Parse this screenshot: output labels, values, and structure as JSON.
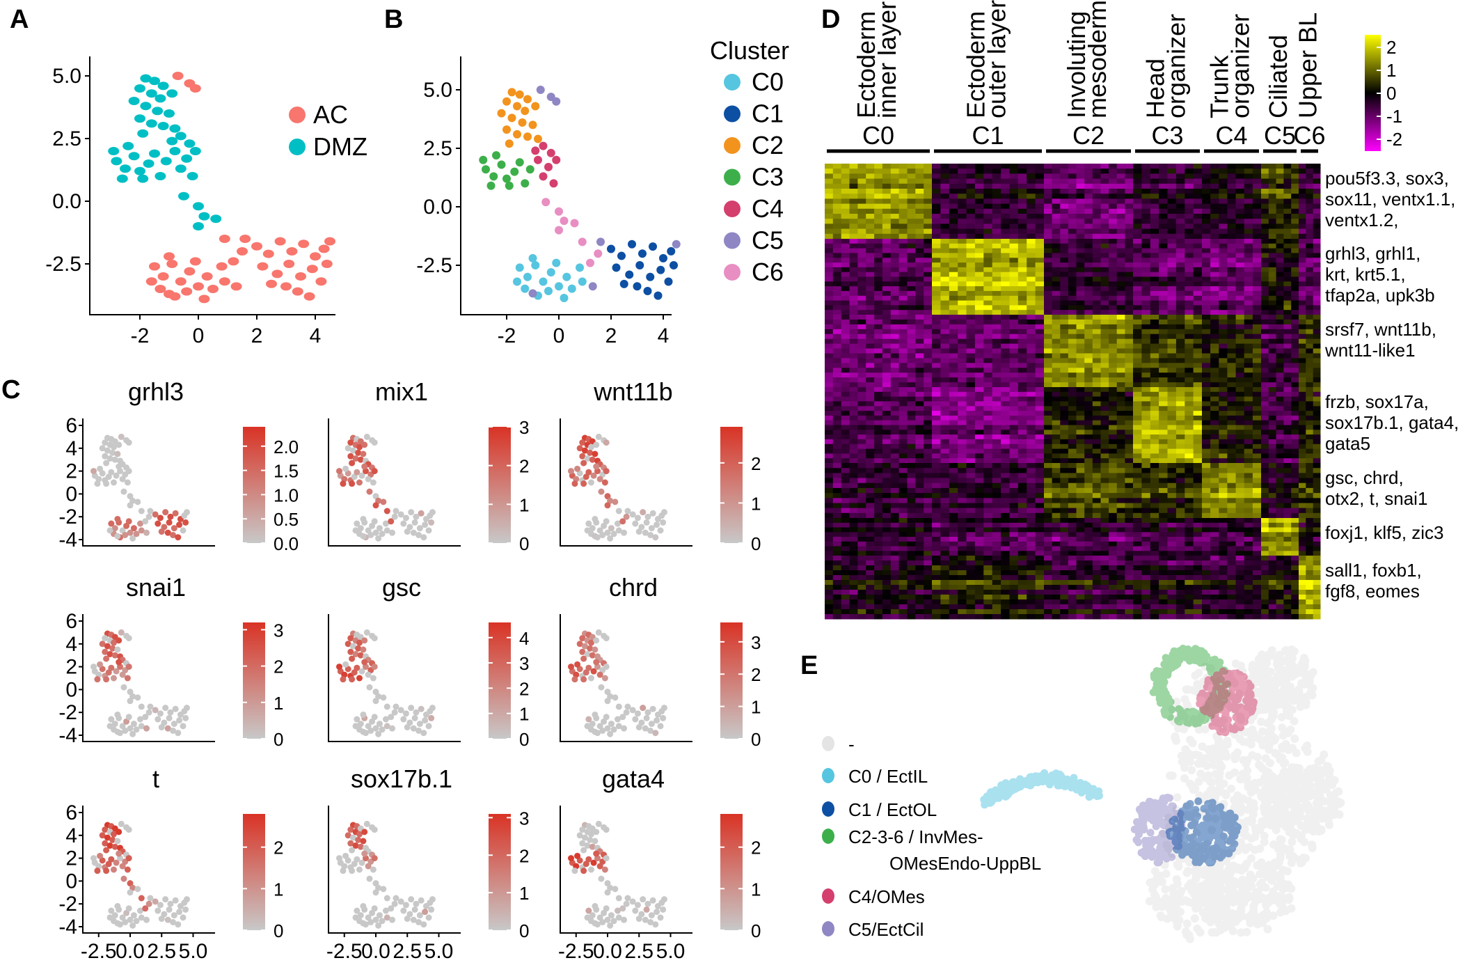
{
  "panel_labels": {
    "a": "A",
    "b": "B",
    "c": "C",
    "d": "D",
    "e": "E"
  },
  "chart_data": [
    {
      "panel": "A",
      "type": "scatter",
      "xlim": [
        -3.3,
        4.7
      ],
      "ylim": [
        -4.2,
        5.3
      ],
      "xticks": [
        "-2",
        "0",
        "2",
        "4"
      ],
      "xtick_values": [
        -2,
        0,
        2,
        4
      ],
      "yticks": [
        "5.0",
        "2.5",
        "0.0",
        "-2.5"
      ],
      "ytick_values": [
        5,
        2.5,
        0,
        -2.5
      ],
      "legend": [
        {
          "name": "AC",
          "color": "#F8766D"
        },
        {
          "name": "DMZ",
          "color": "#00BFC4"
        }
      ],
      "legend_position": "right"
    },
    {
      "panel": "B",
      "type": "scatter",
      "xlim": [
        -3.3,
        4.7
      ],
      "ylim": [
        -4.2,
        5.3
      ],
      "xticks": [
        "-2",
        "0",
        "2",
        "4"
      ],
      "xtick_values": [
        -2,
        0,
        2,
        4
      ],
      "yticks": [
        "5.0",
        "2.5",
        "0.0",
        "-2.5"
      ],
      "ytick_values": [
        5,
        2.5,
        0,
        -2.5
      ],
      "legend_title": "Cluster",
      "legend": [
        {
          "name": "C0",
          "color": "#56C5E0"
        },
        {
          "name": "C1",
          "color": "#0D4FA3"
        },
        {
          "name": "C2",
          "color": "#F2931E"
        },
        {
          "name": "C3",
          "color": "#3DAF4A"
        },
        {
          "name": "C4",
          "color": "#D43F6E"
        },
        {
          "name": "C5",
          "color": "#8E87C4"
        },
        {
          "name": "C6",
          "color": "#E88EC2"
        }
      ],
      "legend_position": "right"
    },
    {
      "panel": "C",
      "type": "scatter",
      "xticks": [
        "-2.5",
        "0.0",
        "2.5",
        "5.0"
      ],
      "xtick_values": [
        -2.5,
        0,
        2.5,
        5
      ],
      "yticks": [
        "6",
        "4",
        "2",
        "0",
        "-2",
        "-4"
      ],
      "ytick_values": [
        6,
        4,
        2,
        0,
        -2,
        -4
      ],
      "low_color": "#C8C8C8",
      "high_color": "#D93325",
      "genes": [
        {
          "name": "grhl3",
          "max": 2.4,
          "ticks": [
            "0.0",
            "0.5",
            "1.0",
            "1.5",
            "2.0"
          ],
          "tick_values": [
            0,
            0.5,
            1,
            1.5,
            2
          ],
          "expressed_clusters": [
            "C1",
            "C0"
          ]
        },
        {
          "name": "mix1",
          "max": 3.0,
          "ticks": [
            "0",
            "1",
            "2",
            "3"
          ],
          "tick_values": [
            0,
            1,
            2,
            3
          ],
          "expressed_clusters": [
            "C2",
            "C3",
            "C4",
            "C6"
          ]
        },
        {
          "name": "wnt11b",
          "max": 2.9,
          "ticks": [
            "0",
            "1",
            "2"
          ],
          "tick_values": [
            0,
            1,
            2
          ],
          "expressed_clusters": [
            "C2",
            "C3",
            "C4",
            "C6"
          ]
        },
        {
          "name": "snai1",
          "max": 3.2,
          "ticks": [
            "0",
            "1",
            "2",
            "3"
          ],
          "tick_values": [
            0,
            1,
            2,
            3
          ],
          "expressed_clusters": [
            "C2",
            "C3",
            "C4"
          ]
        },
        {
          "name": "gsc",
          "max": 4.6,
          "ticks": [
            "0",
            "1",
            "2",
            "3",
            "4"
          ],
          "tick_values": [
            0,
            1,
            2,
            3,
            4
          ],
          "expressed_clusters": [
            "C3",
            "C4",
            "C2"
          ]
        },
        {
          "name": "chrd",
          "max": 3.6,
          "ticks": [
            "0",
            "1",
            "2",
            "3"
          ],
          "tick_values": [
            0,
            1,
            2,
            3
          ],
          "expressed_clusters": [
            "C3",
            "C4",
            "C2"
          ]
        },
        {
          "name": "t",
          "max": 2.8,
          "ticks": [
            "0",
            "1",
            "2"
          ],
          "tick_values": [
            0,
            1,
            2
          ],
          "expressed_clusters": [
            "C2",
            "C3",
            "C4",
            "C6"
          ]
        },
        {
          "name": "sox17b.1",
          "max": 3.1,
          "ticks": [
            "0",
            "1",
            "2",
            "3"
          ],
          "tick_values": [
            0,
            1,
            2,
            3
          ],
          "expressed_clusters": [
            "C2",
            "C4"
          ]
        },
        {
          "name": "gata4",
          "max": 2.8,
          "ticks": [
            "0",
            "1",
            "2"
          ],
          "tick_values": [
            0,
            1,
            2
          ],
          "expressed_clusters": [
            "C3",
            "C4"
          ]
        }
      ]
    },
    {
      "panel": "D",
      "type": "heatmap",
      "clusters": [
        {
          "id": "C0",
          "label": [
            "Ectoderm",
            "inner layer"
          ]
        },
        {
          "id": "C1",
          "label": [
            "Ectoderm",
            "outer layer"
          ]
        },
        {
          "id": "C2",
          "label": [
            "Involuting",
            "mesoderm"
          ]
        },
        {
          "id": "C3",
          "label": [
            "Head",
            "organizer"
          ]
        },
        {
          "id": "C4",
          "label": [
            "Trunk",
            "organizer"
          ]
        },
        {
          "id": "C5",
          "label": [
            "Ciliated"
          ]
        },
        {
          "id": "C6",
          "label": [
            "Upper BL"
          ]
        }
      ],
      "gene_blocks": [
        {
          "genes": [
            "pou5f3.3, sox3,",
            "sox11, ventx1.1,",
            "ventx1.2,"
          ],
          "mean_z": [
            1.2,
            -0.5,
            -1.0,
            -0.5,
            -0.3,
            0.3,
            -0.5
          ]
        },
        {
          "genes": [
            "grhl3, grhl1,",
            "krt, krt5.1,",
            "tfap2a, upk3b"
          ],
          "mean_z": [
            -0.8,
            1.5,
            -0.5,
            -0.8,
            -1.0,
            0.0,
            -0.8
          ]
        },
        {
          "genes": [
            "srsf7, wnt11b,",
            "wnt11-like1"
          ],
          "mean_z": [
            -1.0,
            -0.8,
            1.2,
            0.5,
            0.2,
            -0.5,
            0.3
          ]
        },
        {
          "genes": [
            "frzb, sox17a,",
            "sox17b.1, gata4,",
            "gata5"
          ],
          "mean_z": [
            -0.6,
            -1.0,
            0.3,
            1.5,
            0.3,
            -0.5,
            0.3
          ]
        },
        {
          "genes": [
            "gsc, chrd,",
            "otx2, t, snai1"
          ],
          "mean_z": [
            -0.5,
            -0.5,
            0.5,
            0.3,
            1.0,
            -0.2,
            0.3
          ]
        },
        {
          "genes": [
            "foxj1, klf5, zic3"
          ],
          "mean_z": [
            -0.3,
            -0.5,
            -0.5,
            -0.5,
            -0.5,
            1.3,
            0.0
          ]
        },
        {
          "genes": [
            "sall1, foxb1,",
            "fgf8, eomes"
          ],
          "mean_z": [
            -0.2,
            0.2,
            -0.3,
            -0.2,
            -0.3,
            0.0,
            1.5
          ]
        }
      ],
      "colorbar_ticks": [
        "2",
        "1",
        "0",
        "-1",
        "-2"
      ],
      "colorbar_tick_values": [
        2,
        1,
        0,
        -1,
        -2
      ],
      "colors": {
        "high": "#FFFF00",
        "mid": "#000000",
        "low": "#FF00FF"
      }
    },
    {
      "panel": "E",
      "type": "scatter",
      "legend": [
        {
          "name": "-",
          "color": "#E4E4E4"
        },
        {
          "name": "C0 / EctIL",
          "color": "#56C5E0"
        },
        {
          "name": "C1 / EctOL",
          "color": "#0D4FA3"
        },
        {
          "name": "C2-3-6 / InvMes-",
          "name_line2": "OMesEndo-UppBL",
          "color": "#3DAF4A"
        },
        {
          "name": "C4/OMes",
          "color": "#D43F6E"
        },
        {
          "name": "C5/EctCil",
          "color": "#8E87C4"
        }
      ],
      "legend_position": "left"
    }
  ],
  "points": [
    [
      -1.8,
      4.9,
      "DMZ",
      "C2"
    ],
    [
      -1.5,
      4.8,
      "DMZ",
      "C2"
    ],
    [
      -1.2,
      4.6,
      "DMZ",
      "C2"
    ],
    [
      -2.0,
      4.5,
      "DMZ",
      "C2"
    ],
    [
      -1.6,
      4.3,
      "DMZ",
      "C2"
    ],
    [
      -1.3,
      4.1,
      "DMZ",
      "C2"
    ],
    [
      -0.9,
      4.3,
      "DMZ",
      "C2"
    ],
    [
      -2.2,
      4.0,
      "DMZ",
      "C2"
    ],
    [
      -1.8,
      3.8,
      "DMZ",
      "C2"
    ],
    [
      -1.4,
      3.6,
      "DMZ",
      "C2"
    ],
    [
      -1.0,
      3.5,
      "DMZ",
      "C2"
    ],
    [
      -2.0,
      3.3,
      "DMZ",
      "C2"
    ],
    [
      -1.6,
      3.1,
      "DMZ",
      "C2"
    ],
    [
      -1.2,
      3.0,
      "DMZ",
      "C2"
    ],
    [
      -0.8,
      2.9,
      "DMZ",
      "C2"
    ],
    [
      -1.9,
      2.7,
      "DMZ",
      "C2"
    ],
    [
      -2.8,
      1.6,
      "DMZ",
      "C3"
    ],
    [
      -2.5,
      1.3,
      "DMZ",
      "C3"
    ],
    [
      -2.2,
      1.8,
      "DMZ",
      "C3"
    ],
    [
      -2.0,
      1.2,
      "DMZ",
      "C3"
    ],
    [
      -1.7,
      1.5,
      "DMZ",
      "C3"
    ],
    [
      -2.4,
      2.2,
      "DMZ",
      "C3"
    ],
    [
      -1.5,
      1.9,
      "DMZ",
      "C3"
    ],
    [
      -2.9,
      2.0,
      "DMZ",
      "C3"
    ],
    [
      -1.9,
      0.9,
      "DMZ",
      "C3"
    ],
    [
      -1.3,
      1.0,
      "DMZ",
      "C3"
    ],
    [
      -2.6,
      0.9,
      "DMZ",
      "C3"
    ],
    [
      -1.1,
      1.6,
      "DMZ",
      "C3"
    ],
    [
      -0.6,
      2.6,
      "DMZ",
      "C4"
    ],
    [
      -0.3,
      2.3,
      "DMZ",
      "C4"
    ],
    [
      -0.8,
      2.0,
      "DMZ",
      "C4"
    ],
    [
      -0.4,
      1.7,
      "DMZ",
      "C4"
    ],
    [
      -0.1,
      2.0,
      "DMZ",
      "C4"
    ],
    [
      -0.6,
      1.3,
      "DMZ",
      "C4"
    ],
    [
      -0.2,
      1.0,
      "DMZ",
      "C4"
    ],
    [
      -0.9,
      2.4,
      "DMZ",
      "C4"
    ],
    [
      -0.7,
      5.0,
      "AC",
      "C5"
    ],
    [
      -0.3,
      4.7,
      "AC",
      "C5"
    ],
    [
      -0.1,
      4.5,
      "AC",
      "C5"
    ],
    [
      -0.5,
      0.2,
      "DMZ",
      "C6"
    ],
    [
      0.0,
      -0.2,
      "DMZ",
      "C6"
    ],
    [
      0.2,
      -0.6,
      "DMZ",
      "C6"
    ],
    [
      0.0,
      -1.0,
      "DMZ",
      "C6"
    ],
    [
      0.6,
      -0.7,
      "DMZ",
      "C6"
    ],
    [
      0.9,
      -1.5,
      "AC",
      "C6"
    ],
    [
      -1.5,
      -2.6,
      "AC",
      "C0"
    ],
    [
      -1.2,
      -3.0,
      "AC",
      "C0"
    ],
    [
      -0.9,
      -2.5,
      "AC",
      "C0"
    ],
    [
      -0.6,
      -3.2,
      "AC",
      "C0"
    ],
    [
      -0.3,
      -2.8,
      "AC",
      "C0"
    ],
    [
      0.0,
      -3.4,
      "AC",
      "C0"
    ],
    [
      0.3,
      -3.0,
      "AC",
      "C0"
    ],
    [
      -1.3,
      -3.5,
      "AC",
      "C0"
    ],
    [
      -0.8,
      -3.8,
      "AC",
      "C0"
    ],
    [
      -0.4,
      -3.6,
      "AC",
      "C0"
    ],
    [
      0.2,
      -3.9,
      "AC",
      "C0"
    ],
    [
      0.5,
      -3.5,
      "AC",
      "C0"
    ],
    [
      -1.0,
      -2.2,
      "AC",
      "C0"
    ],
    [
      0.8,
      -2.6,
      "AC",
      "C0"
    ],
    [
      -0.1,
      -2.4,
      "AC",
      "C0"
    ],
    [
      0.9,
      -3.2,
      "AC",
      "C0"
    ],
    [
      -1.6,
      -3.2,
      "AC",
      "C0"
    ],
    [
      2.0,
      -1.8,
      "AC",
      "C1"
    ],
    [
      2.4,
      -2.1,
      "AC",
      "C1"
    ],
    [
      2.8,
      -1.6,
      "AC",
      "C1"
    ],
    [
      3.2,
      -2.0,
      "AC",
      "C1"
    ],
    [
      3.6,
      -1.7,
      "AC",
      "C1"
    ],
    [
      4.0,
      -2.2,
      "AC",
      "C1"
    ],
    [
      4.3,
      -1.9,
      "AC",
      "C1"
    ],
    [
      2.2,
      -2.6,
      "AC",
      "C1"
    ],
    [
      2.7,
      -2.9,
      "AC",
      "C1"
    ],
    [
      3.1,
      -2.5,
      "AC",
      "C1"
    ],
    [
      3.5,
      -3.0,
      "AC",
      "C1"
    ],
    [
      3.9,
      -2.7,
      "AC",
      "C1"
    ],
    [
      4.2,
      -3.2,
      "AC",
      "C1"
    ],
    [
      3.0,
      -3.4,
      "AC",
      "C1"
    ],
    [
      3.4,
      -3.6,
      "AC",
      "C1"
    ],
    [
      3.8,
      -3.8,
      "AC",
      "C1"
    ],
    [
      2.5,
      -3.3,
      "AC",
      "C1"
    ],
    [
      4.4,
      -2.5,
      "AC",
      "C1"
    ],
    [
      1.6,
      -1.5,
      "AC",
      "C5"
    ],
    [
      1.3,
      -3.4,
      "AC",
      "C5"
    ],
    [
      4.5,
      -1.6,
      "AC",
      "C5"
    ],
    [
      -1.0,
      -3.7,
      "AC",
      "C5"
    ],
    [
      1.2,
      -2.4,
      "AC",
      "C6"
    ],
    [
      1.5,
      -2.0,
      "AC",
      "C6"
    ]
  ]
}
